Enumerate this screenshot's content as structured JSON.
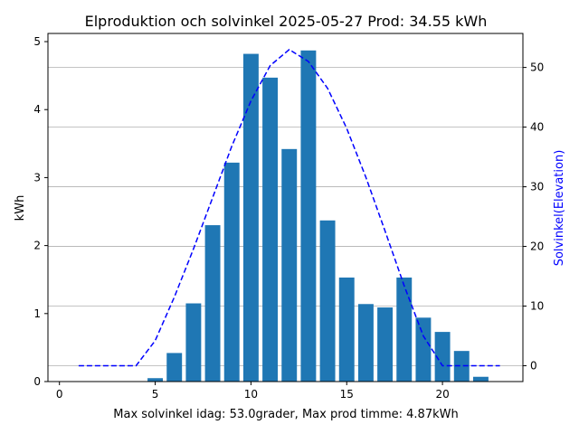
{
  "chart_data": {
    "type": "bar",
    "title": "Elproduktion och solvinkel 2025-05-27 Prod: 34.55 kWh",
    "xlabel": "Max solvinkel idag: 53.0grader, Max prod timme: 4.87kWh",
    "ylabel": "kWh",
    "y2label": "Solvinkel(Elevation)",
    "xlim": [
      -0.6,
      24.2
    ],
    "ylim": [
      0,
      5.12
    ],
    "y2lim": [
      -2.65,
      55.7
    ],
    "xticks": [
      0,
      5,
      10,
      15,
      20
    ],
    "yticks": [
      0,
      1,
      2,
      3,
      4,
      5
    ],
    "y2ticks": [
      0,
      10,
      20,
      30,
      40,
      50
    ],
    "grid": "horizontal lines at right-axis ticks",
    "colors": {
      "bars": "#1f77b4",
      "line": "#0000ff",
      "grid": "#b0b0b0"
    },
    "bar_series": {
      "name": "",
      "x": [
        5,
        6,
        7,
        8,
        9,
        10,
        11,
        12,
        13,
        14,
        15,
        16,
        17,
        18,
        19,
        20,
        21,
        22
      ],
      "values": [
        0.05,
        0.42,
        1.15,
        2.3,
        3.22,
        4.82,
        4.47,
        3.42,
        4.87,
        2.37,
        1.53,
        1.14,
        1.09,
        1.53,
        0.94,
        0.73,
        0.45,
        0.07
      ]
    },
    "line_series": {
      "name": "",
      "style": "dashed",
      "x": [
        1,
        2,
        3,
        4,
        5,
        6,
        7,
        8,
        9,
        10,
        11,
        12,
        13,
        14,
        15,
        16,
        17,
        18,
        19,
        20,
        21,
        22,
        23
      ],
      "values": [
        0,
        0,
        0,
        0,
        4.2,
        11.5,
        19.6,
        28.2,
        36.8,
        44.4,
        50.3,
        53.0,
        51.0,
        46.5,
        39.8,
        31.6,
        22.6,
        13.4,
        5.0,
        0,
        0,
        0,
        0
      ]
    }
  }
}
